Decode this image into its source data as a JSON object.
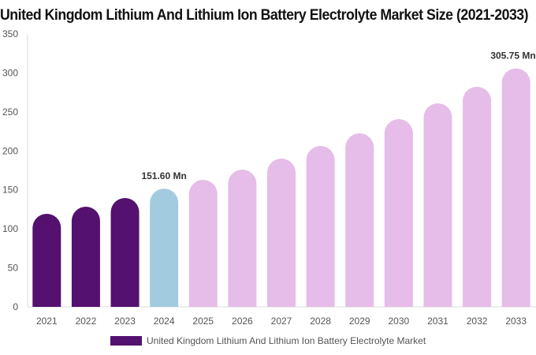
{
  "chart_data": {
    "type": "bar",
    "title": "United Kingdom Lithium And Lithium Ion Battery Electrolyte Market Size (2021-2033)",
    "categories": [
      "2021",
      "2022",
      "2023",
      "2024",
      "2025",
      "2026",
      "2027",
      "2028",
      "2029",
      "2030",
      "2031",
      "2032",
      "2033"
    ],
    "series": [
      {
        "name": "United Kingdom Lithium And Lithium Ion Battery Electrolyte Market",
        "values": [
          119.4,
          128.5,
          139.6,
          151.6,
          162.9,
          176.0,
          190.2,
          206.3,
          222.5,
          240.7,
          261.0,
          282.2,
          305.75
        ]
      }
    ],
    "bar_colors": {
      "historical": "#541170",
      "base_year": "#a3cbdf",
      "forecast": "#e6bce8"
    },
    "color_by_category": [
      "historical",
      "historical",
      "historical",
      "base_year",
      "forecast",
      "forecast",
      "forecast",
      "forecast",
      "forecast",
      "forecast",
      "forecast",
      "forecast",
      "forecast"
    ],
    "data_labels": [
      {
        "category": "2024",
        "text": "151.60 Mn"
      },
      {
        "category": "2033",
        "text": "305.75 Mn"
      }
    ],
    "yticks": [
      0,
      50,
      100,
      150,
      200,
      250,
      300,
      350
    ],
    "ylim": [
      0,
      350
    ],
    "xlabel": "",
    "ylabel": "",
    "grid": false,
    "legend_position": "bottom"
  }
}
